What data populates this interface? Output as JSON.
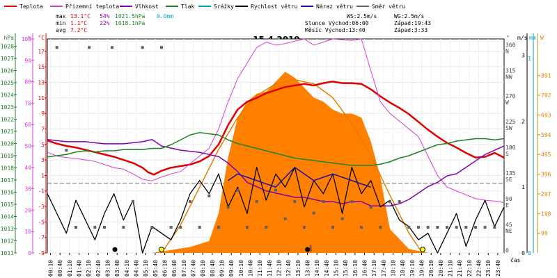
{
  "legend": [
    {
      "label": "Teplota",
      "color": "#e00000"
    },
    {
      "label": "Přízemní teplota",
      "color": "#d040d0"
    },
    {
      "label": "Vlhkost",
      "color": "#8000b0"
    },
    {
      "label": "Tlak",
      "color": "#208020"
    },
    {
      "label": "Srážky",
      "color": "#00a0c0"
    },
    {
      "label": "Rychlost větru",
      "color": "#000000"
    },
    {
      "label": "Náraz větru",
      "color": "#2010a0"
    },
    {
      "label": "Směr větru",
      "color": "#606060"
    }
  ],
  "stats": {
    "rows": [
      {
        "label": "max",
        "temp": "13.1°C",
        "hum": "54%",
        "press": "1021.5hPa",
        "rain": "0.0mm"
      },
      {
        "label": "min",
        "temp": "1.1°C",
        "hum": "22%",
        "press": "1018.1hPa",
        "rain": ""
      },
      {
        "label": "avg",
        "temp": "7.2°C",
        "hum": "",
        "press": "",
        "rain": ""
      }
    ],
    "ws": "WS:2.5m/s",
    "wg": "WG:2.5m/s",
    "sun": "Slunce Východ:06:00",
    "sun_set": "Západ:19:43",
    "moon": "Měsíc Východ:13:40",
    "moon_set": "Západ:3:33"
  },
  "chart_data": {
    "type": "line",
    "title": "15.4.2019",
    "xlabel": "čas",
    "x_ticks": [
      "00:10",
      "00:40",
      "01:10",
      "01:40",
      "02:10",
      "02:40",
      "03:10",
      "03:40",
      "04:10",
      "04:40",
      "05:10",
      "05:40",
      "06:10",
      "06:40",
      "07:10",
      "07:40",
      "08:10",
      "08:40",
      "09:10",
      "09:40",
      "10:10",
      "10:40",
      "11:10",
      "11:40",
      "12:10",
      "12:40",
      "13:10",
      "13:40",
      "14:10",
      "14:40",
      "15:10",
      "15:40",
      "16:10",
      "16:40",
      "17:10",
      "17:40",
      "18:10",
      "18:40",
      "19:10",
      "19:40",
      "20:10",
      "20:40",
      "21:10",
      "21:40",
      "22:10",
      "22:40",
      "23:10",
      "23:40"
    ],
    "axes": {
      "pressure": {
        "unit": "hPa",
        "ticks": [
          1011,
          1012,
          1013,
          1014,
          1015,
          1016,
          1017,
          1018,
          1019,
          1020,
          1021,
          1022,
          1023,
          1024,
          1025,
          1026,
          1027,
          1028
        ],
        "range": [
          1011,
          1028.6
        ]
      },
      "humidity": {
        "unit": "%",
        "ticks": [
          0,
          10,
          20,
          30,
          40,
          50,
          60,
          70,
          80,
          90,
          100
        ],
        "range": [
          0,
          100
        ]
      },
      "temperature": {
        "unit": "°C",
        "ticks": [
          -9,
          -7,
          -5,
          -3,
          -1,
          1,
          3,
          5,
          7,
          9,
          11,
          13,
          15,
          17
        ],
        "range": [
          -9,
          18.6
        ]
      },
      "wind_dir": {
        "unit": "°",
        "ticks": [
          {
            "v": 0,
            "l": "0"
          },
          {
            "v": 45,
            "l": "45 NE"
          },
          {
            "v": 90,
            "l": "90 E"
          },
          {
            "v": 135,
            "l": "135 SE"
          },
          {
            "v": 180,
            "l": "180 S"
          },
          {
            "v": 225,
            "l": "225 SW"
          },
          {
            "v": 270,
            "l": "270 W"
          },
          {
            "v": 315,
            "l": "315 NW"
          },
          {
            "v": 360,
            "l": "360 N"
          }
        ],
        "range": [
          0,
          375
        ]
      },
      "wind_speed": {
        "unit": "m/s",
        "ticks": [
          0,
          1,
          2,
          3
        ],
        "range": [
          0,
          3.25
        ]
      },
      "rain": {
        "unit": "mm",
        "ticks": [
          0,
          1
        ],
        "range": [
          0,
          1.1
        ]
      },
      "solar": {
        "unit": "W",
        "ticks": [
          99,
          198,
          297,
          396,
          495,
          594,
          693,
          792,
          891
        ],
        "range": [
          0,
          1075
        ]
      }
    },
    "series": [
      {
        "name": "Teplota",
        "axis": "temperature",
        "color": "#e00000",
        "x": [
          0,
          0.5,
          1,
          1.5,
          2,
          2.5,
          3,
          3.5,
          4,
          4.5,
          5,
          5.3,
          5.6,
          6,
          6.5,
          7,
          7.5,
          8,
          8.5,
          9,
          9.5,
          10,
          10.5,
          11,
          11.5,
          12,
          12.5,
          13,
          13.5,
          14,
          14.5,
          15,
          15.5,
          16,
          16.5,
          17,
          17.5,
          18,
          18.5,
          19,
          19.5,
          20,
          20.5,
          21,
          21.5,
          22,
          22.5,
          23,
          23.5,
          24
        ],
        "values": [
          5.5,
          5.1,
          4.8,
          4.6,
          4.3,
          4.0,
          3.7,
          3.4,
          3.0,
          2.6,
          2.0,
          1.4,
          1.1,
          1.6,
          2.0,
          2.2,
          2.4,
          2.8,
          3.5,
          5.0,
          7.5,
          9.5,
          10.5,
          11.0,
          11.6,
          12.0,
          12.4,
          12.6,
          12.8,
          12.6,
          12.9,
          13.1,
          12.9,
          12.9,
          12.8,
          12.1,
          11.2,
          10.4,
          9.7,
          8.9,
          7.9,
          6.9,
          6.0,
          5.2,
          4.6,
          3.9,
          3.3,
          3.4,
          3.9,
          3.3
        ]
      },
      {
        "name": "Přízemní teplota",
        "axis": "temperature",
        "color": "#d040d0",
        "x": [
          0,
          0.5,
          1,
          1.5,
          2,
          2.5,
          3,
          3.5,
          4,
          4.5,
          5,
          5.5,
          6,
          6.5,
          7,
          7.5,
          8,
          8.5,
          9,
          9.5,
          10,
          10.5,
          11,
          11.5,
          12,
          12.5,
          13,
          13.5,
          14,
          14.5,
          15,
          15.5,
          16,
          16.5,
          17,
          17.5,
          18,
          18.5,
          19,
          19.5,
          20,
          20.5,
          21,
          21.5,
          22,
          22.5,
          23,
          23.5,
          24
        ],
        "values": [
          4.0,
          3.5,
          3.3,
          3.2,
          3.0,
          2.8,
          2.4,
          2.0,
          1.8,
          1.2,
          0.5,
          0.3,
          0.8,
          1.2,
          1.5,
          2.5,
          3.5,
          4.5,
          7.0,
          10.5,
          13.5,
          15.5,
          17.5,
          18.2,
          17.8,
          18.0,
          18.3,
          18.6,
          17.8,
          18.2,
          18.6,
          18.5,
          18.4,
          18.6,
          14.5,
          10.5,
          9.0,
          8.0,
          7.0,
          6.0,
          3.5,
          1.0,
          -0.5,
          -1.0,
          -1.5,
          -2.0,
          -2.2,
          -2.3,
          -2.5
        ]
      },
      {
        "name": "Vlhkost",
        "axis": "humidity",
        "color": "#8000b0",
        "x": [
          0,
          1,
          2,
          3,
          4,
          5,
          5.5,
          6,
          7,
          8,
          8.5,
          9,
          9.5,
          10,
          10.5,
          11,
          11.5,
          12,
          12.5,
          13,
          13.5,
          14,
          14.5,
          15,
          15.5,
          16,
          16.5,
          17,
          17.5,
          18,
          18.5,
          19,
          19.5,
          20,
          20.5,
          21,
          21.5,
          22,
          22.5,
          23,
          23.5,
          24
        ],
        "values": [
          53,
          52,
          52,
          51,
          51,
          52,
          53,
          50,
          48,
          47,
          46,
          45,
          42,
          38,
          33,
          31,
          29,
          28,
          27,
          26,
          26,
          25,
          24,
          24,
          23,
          24,
          24,
          22,
          22,
          22,
          23,
          25,
          28,
          31,
          33,
          36,
          37,
          40,
          43,
          46,
          48,
          50
        ]
      },
      {
        "name": "Tlak",
        "axis": "pressure",
        "color": "#208020",
        "x": [
          0,
          0.5,
          1,
          1.5,
          2,
          2.5,
          3,
          3.5,
          4,
          4.5,
          5,
          5.5,
          6,
          6.5,
          7,
          7.5,
          8,
          8.5,
          9,
          9.5,
          10,
          10.5,
          11,
          11.5,
          12,
          12.5,
          13,
          13.5,
          14,
          14.5,
          15,
          15.5,
          16,
          16.5,
          17,
          17.5,
          18,
          18.5,
          19,
          19.5,
          20,
          20.5,
          21,
          21.5,
          22,
          22.5,
          23,
          23.5,
          24
        ],
        "values": [
          1018.9,
          1019.0,
          1019.1,
          1019.3,
          1019.4,
          1019.3,
          1019.4,
          1019.4,
          1019.5,
          1019.5,
          1019.5,
          1019.6,
          1019.6,
          1019.9,
          1020.3,
          1020.7,
          1020.9,
          1020.8,
          1020.7,
          1020.3,
          1020.0,
          1019.8,
          1019.6,
          1019.4,
          1019.2,
          1019.0,
          1018.8,
          1018.7,
          1018.6,
          1018.5,
          1018.4,
          1018.3,
          1018.2,
          1018.2,
          1018.2,
          1018.3,
          1018.5,
          1018.8,
          1019.0,
          1019.3,
          1019.6,
          1019.9,
          1020.0,
          1020.2,
          1020.3,
          1020.4,
          1020.4,
          1020.3,
          1020.4
        ]
      },
      {
        "name": "Rychlost větru",
        "axis": "wind_speed",
        "color": "#000000",
        "x": [
          0,
          0.5,
          1,
          1.5,
          2,
          2.5,
          3,
          3.5,
          4,
          4.5,
          5,
          5.5,
          6,
          6.5,
          7,
          7.5,
          8,
          8.5,
          9,
          9.5,
          10,
          10.5,
          11,
          11.5,
          12,
          12.5,
          13,
          13.5,
          14,
          14.5,
          15,
          15.5,
          16,
          16.5,
          17,
          17.5,
          18,
          18.5,
          19,
          19.5,
          20,
          20.5,
          21,
          21.5,
          22,
          22.5,
          23,
          23.5,
          24
        ],
        "values": [
          0.9,
          0.6,
          0.3,
          0.8,
          0.5,
          0.2,
          0.6,
          0.9,
          0.5,
          0.8,
          0.0,
          0.4,
          0.3,
          0.2,
          0.5,
          0.9,
          1.1,
          0.9,
          1.2,
          0.7,
          1.0,
          0.6,
          1.3,
          0.8,
          1.2,
          1.0,
          1.3,
          0.7,
          1.1,
          0.9,
          1.2,
          0.6,
          1.3,
          0.9,
          1.1,
          0.7,
          0.8,
          0.5,
          0.4,
          0.2,
          0.3,
          0.0,
          0.3,
          0.6,
          0.1,
          0.5,
          0.8,
          0.4,
          0.7
        ]
      },
      {
        "name": "Náraz větru",
        "axis": "wind_speed",
        "color": "#2010a0",
        "x": [
          9.5,
          10,
          11,
          12,
          13,
          14,
          15,
          16,
          17
        ],
        "values": [
          1.1,
          1.2,
          1.1,
          1.0,
          1.3,
          1.1,
          1.2,
          1.1,
          1.0
        ]
      }
    ],
    "solar_area": {
      "axis": "solar",
      "color": "#ff8000",
      "x": [
        5.5,
        6.5,
        7.5,
        8.5,
        9,
        9.5,
        10,
        10.5,
        11,
        11.5,
        12,
        12.5,
        13,
        13.5,
        14,
        14.5,
        15,
        15.5,
        16,
        16.5,
        17,
        17.5,
        18,
        19,
        20
      ],
      "values": [
        0,
        15,
        30,
        60,
        200,
        480,
        680,
        760,
        800,
        810,
        860,
        910,
        880,
        830,
        780,
        760,
        720,
        700,
        700,
        680,
        560,
        380,
        120,
        20,
        0
      ]
    },
    "clear_sky": {
      "axis": "solar",
      "color": "#e08000",
      "x": [
        6,
        7,
        8,
        9,
        10,
        11,
        12,
        13,
        14,
        15,
        16,
        17,
        18,
        19,
        19.7
      ],
      "values": [
        0,
        140,
        330,
        520,
        680,
        790,
        850,
        870,
        850,
        780,
        650,
        490,
        290,
        100,
        0
      ]
    },
    "wind_dir_points": {
      "axis": "wind_dir",
      "color": "#606060",
      "x": [
        0.5,
        1,
        1.5,
        2.2,
        2.5,
        3,
        3.4,
        4,
        4.5,
        5,
        5.5,
        6,
        6.5,
        7,
        7.5,
        8,
        8.5,
        9,
        9.5,
        10,
        10.5,
        11,
        11.5,
        12,
        12.5,
        13,
        13.5,
        14,
        14.5,
        15,
        15.5,
        16,
        16.5,
        17,
        17.5,
        18,
        18.5,
        19,
        19.5,
        20,
        20.5,
        21,
        21.5,
        22,
        22.5,
        23,
        23.5
      ],
      "values": [
        360,
        180,
        45,
        360,
        45,
        45,
        360,
        45,
        90,
        360,
        45,
        360,
        45,
        45,
        90,
        45,
        100,
        45,
        80,
        110,
        45,
        90,
        45,
        110,
        60,
        90,
        45,
        70,
        90,
        45,
        60,
        90,
        45,
        80,
        45,
        90,
        90,
        45,
        45,
        45,
        45,
        45,
        45,
        45,
        45,
        45,
        45
      ]
    }
  }
}
